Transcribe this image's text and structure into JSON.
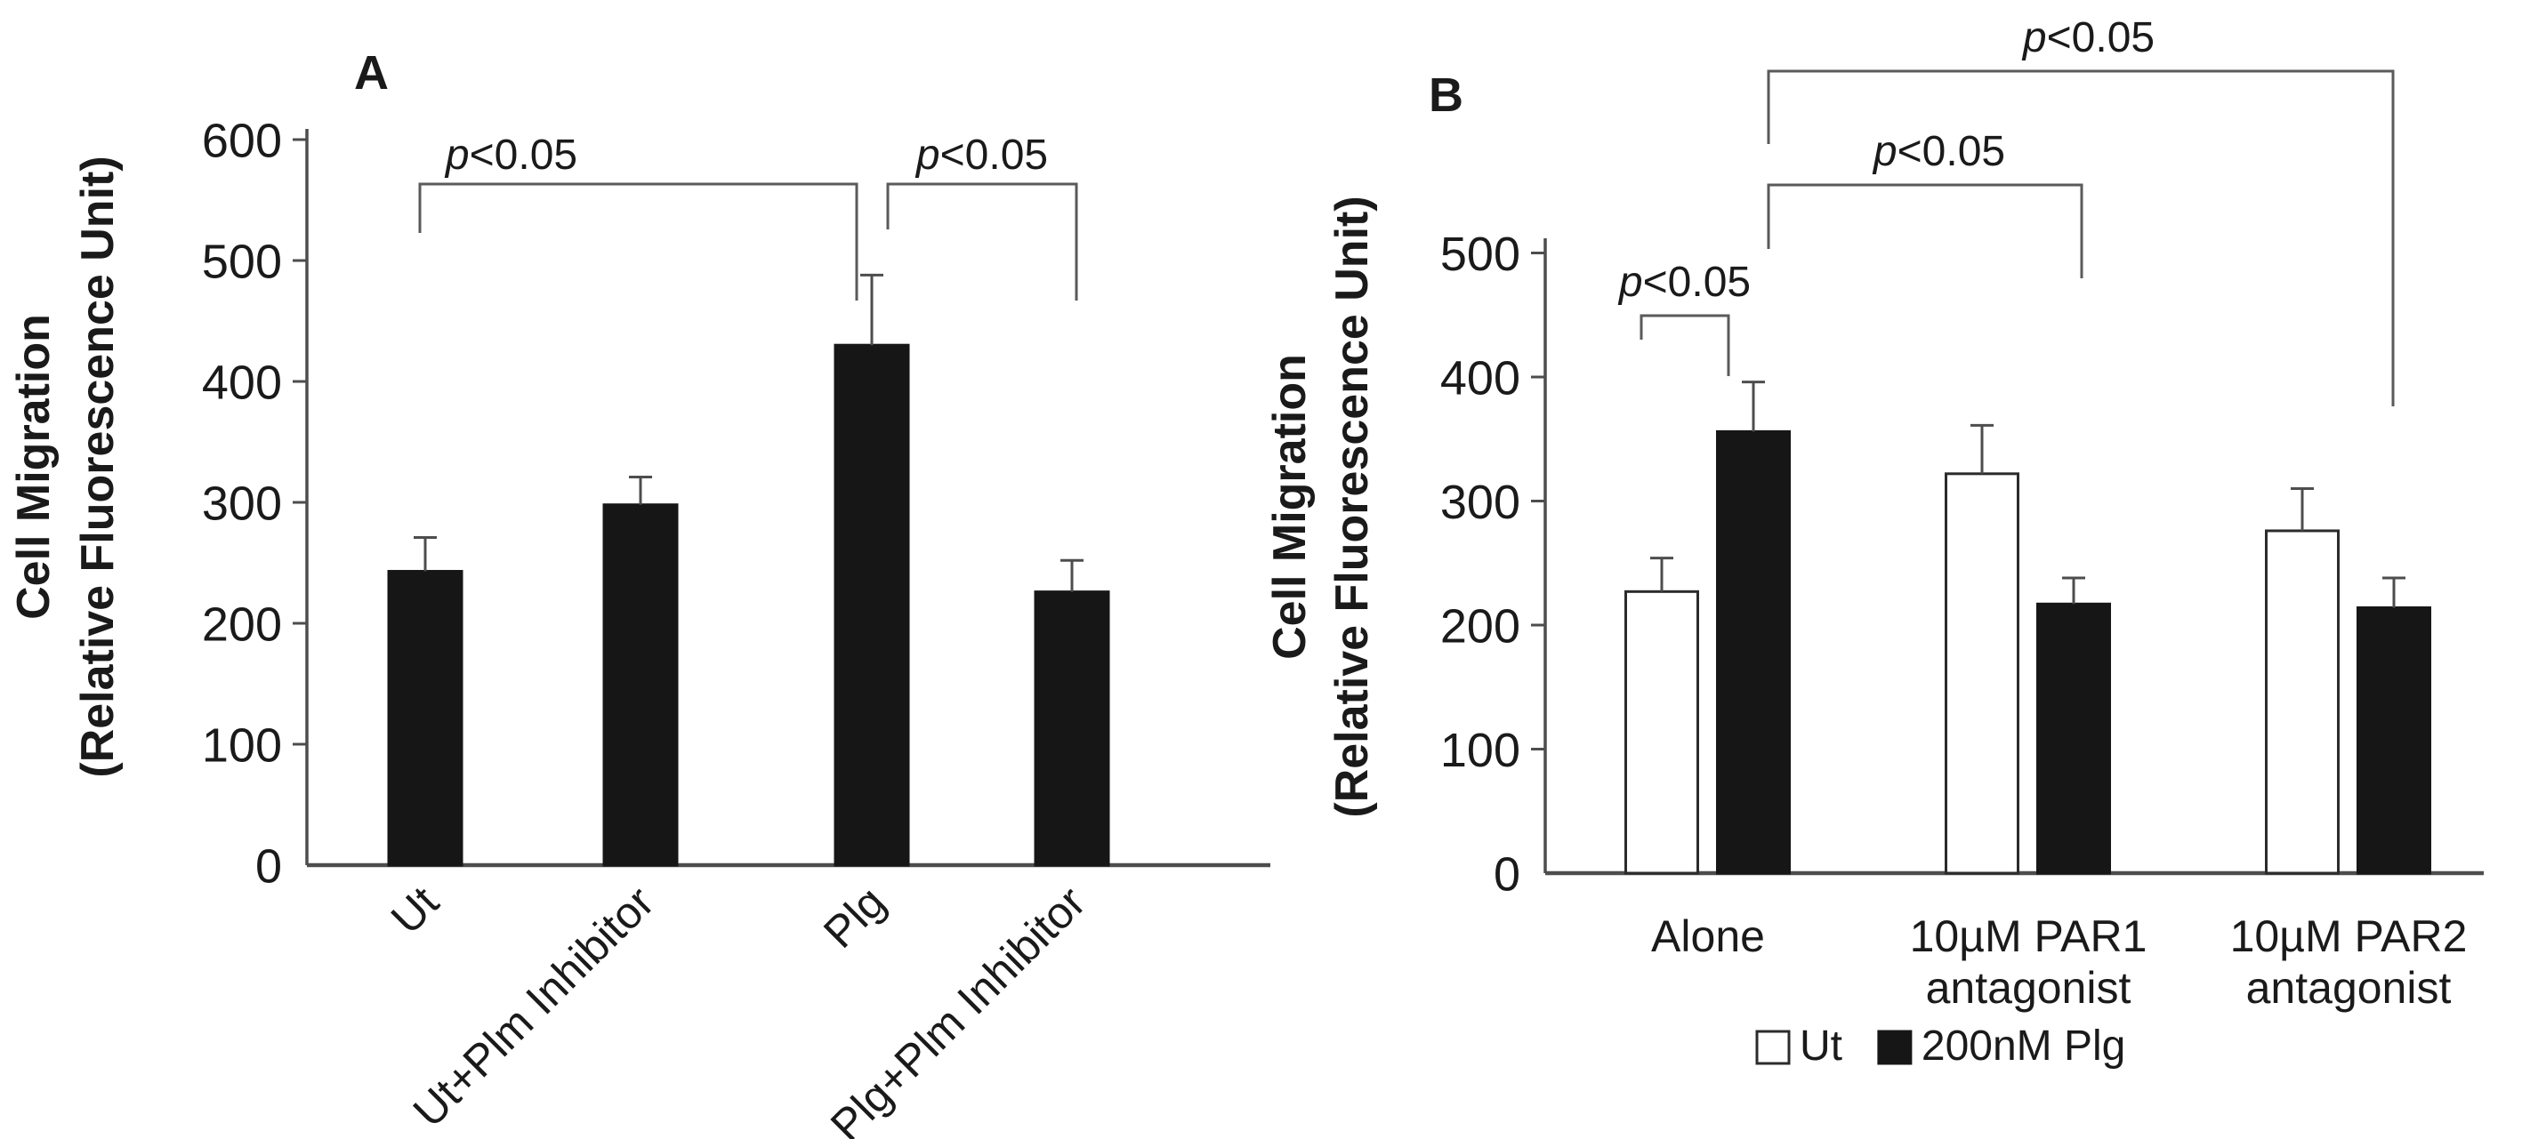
{
  "figure": {
    "description": "Two-panel bar chart of cell migration (relative fluorescence units)",
    "panel_labels": [
      "A",
      "B"
    ]
  },
  "colors": {
    "bar_black": "#161616",
    "bar_white": "#ffffff",
    "bar_stroke": "#2b2b2b",
    "axis": "#4d4d4d",
    "bracket": "#5a5a5a",
    "text": "#1a1a1a",
    "background": "#ffffff"
  },
  "chart_data": [
    {
      "type": "bar",
      "panel_label": "A",
      "ylabel_line1": "Cell Migration",
      "ylabel_line2": "(Relative Fluorescence Unit)",
      "ylim": [
        0,
        600
      ],
      "ytick_step": 100,
      "yticks": [
        0,
        100,
        200,
        300,
        400,
        500,
        600
      ],
      "grid": false,
      "categories": [
        "Ut",
        "Ut+Plm Inhibitor",
        "Plg",
        "Plg+Plm Inhibitor"
      ],
      "values": [
        243,
        298,
        430,
        226
      ],
      "errors": [
        28,
        23,
        58,
        26
      ],
      "bar_style": "black",
      "xlabel_rotation": -45,
      "significance": [
        {
          "label": "p<0.05",
          "from": "Ut",
          "to": "Plg"
        },
        {
          "label": "p<0.05",
          "from": "Plg",
          "to": "Plg+Plm Inhibitor"
        }
      ]
    },
    {
      "type": "bar",
      "panel_label": "B",
      "ylabel_line1": "Cell Migration",
      "ylabel_line2": "(Relative Fluorescence Unit)",
      "ylim": [
        0,
        500
      ],
      "ytick_step": 100,
      "yticks": [
        0,
        100,
        200,
        300,
        400,
        500
      ],
      "grid": false,
      "categories": [
        "Alone",
        "10µM PAR1 antagonist",
        "10µM PAR2 antagonist"
      ],
      "xtick_lines": [
        [
          "Alone"
        ],
        [
          "10µM PAR1",
          "antagonist"
        ],
        [
          "10µM PAR2",
          "antagonist"
        ]
      ],
      "series": [
        {
          "name": "Ut",
          "style": "white",
          "values": [
            227,
            322,
            276
          ],
          "errors": [
            27,
            39,
            34
          ]
        },
        {
          "name": "200nM Plg",
          "style": "black",
          "values": [
            356,
            217,
            214
          ],
          "errors": [
            40,
            21,
            24
          ]
        }
      ],
      "legend": {
        "position": "bottom",
        "items": [
          {
            "swatch": "white",
            "label": "Ut"
          },
          {
            "swatch": "black",
            "label": "200nM Plg"
          }
        ]
      },
      "significance": [
        {
          "label": "p<0.05",
          "from": "Alone:Ut",
          "to": "Alone:200nM Plg"
        },
        {
          "label": "p<0.05",
          "from": "Alone:200nM Plg",
          "to": "10µM PAR1 antagonist"
        },
        {
          "label": "p<0.05",
          "from": "Alone:200nM Plg",
          "to": "10µM PAR2 antagonist"
        }
      ]
    }
  ]
}
